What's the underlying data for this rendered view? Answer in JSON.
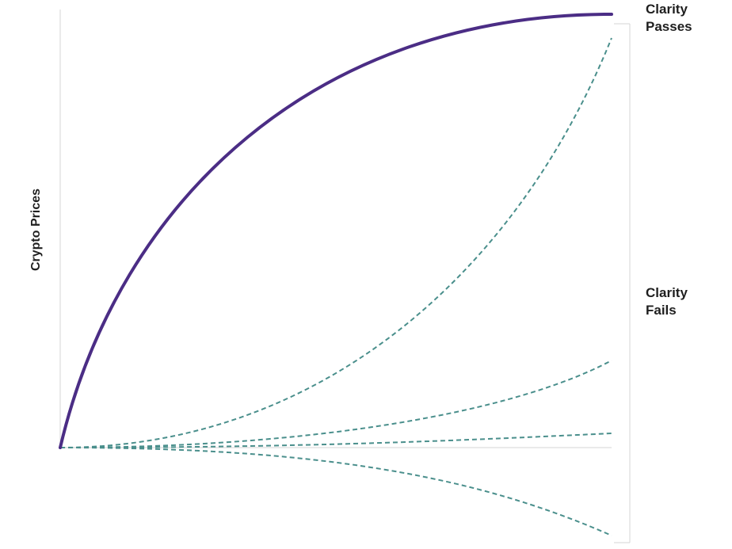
{
  "y_axis_label": "Crypto Prices",
  "scenarios": {
    "passes": "Clarity Passes",
    "fails": "Clarity Fails"
  }
}
